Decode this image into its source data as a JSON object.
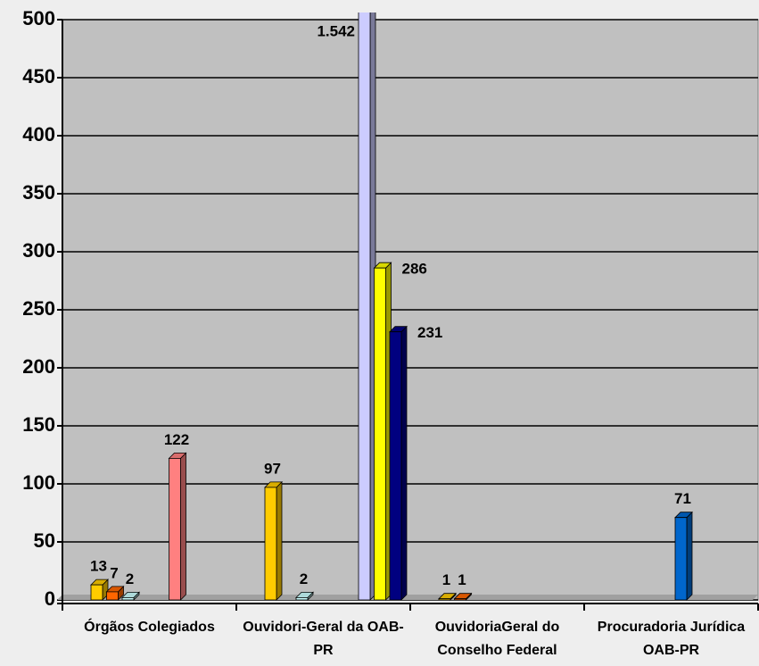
{
  "chart_data": {
    "type": "bar",
    "categories": [
      "Órgãos Colegiados",
      "Ouvidori-Geral da OAB-PR",
      "OuvidoriaGeral do Conselho Federal",
      "Procuradoria Jurídica OAB-PR"
    ],
    "series": [
      {
        "color": "#ffcc00",
        "values": [
          13,
          97,
          1,
          null
        ]
      },
      {
        "color": "#ff6600",
        "values": [
          7,
          null,
          1,
          null
        ]
      },
      {
        "color": "#ccffff",
        "values": [
          2,
          2,
          null,
          null
        ]
      },
      {
        "color": "#0066cc",
        "values": [
          null,
          null,
          null,
          71
        ]
      },
      {
        "color": "#ff8080",
        "values": [
          122,
          null,
          null,
          null
        ]
      },
      {
        "color": "#ccccff",
        "values": [
          null,
          1542,
          null,
          null
        ],
        "value_labels": [
          null,
          "1.542",
          null,
          null
        ]
      },
      {
        "color": "#ffff00",
        "values": [
          null,
          286,
          null,
          null
        ]
      },
      {
        "color": "#000080",
        "values": [
          null,
          231,
          null,
          null
        ]
      }
    ],
    "ylim": [
      0,
      500
    ],
    "yticks": [
      0,
      50,
      100,
      150,
      200,
      250,
      300,
      350,
      400,
      450,
      500
    ],
    "grid": true
  }
}
